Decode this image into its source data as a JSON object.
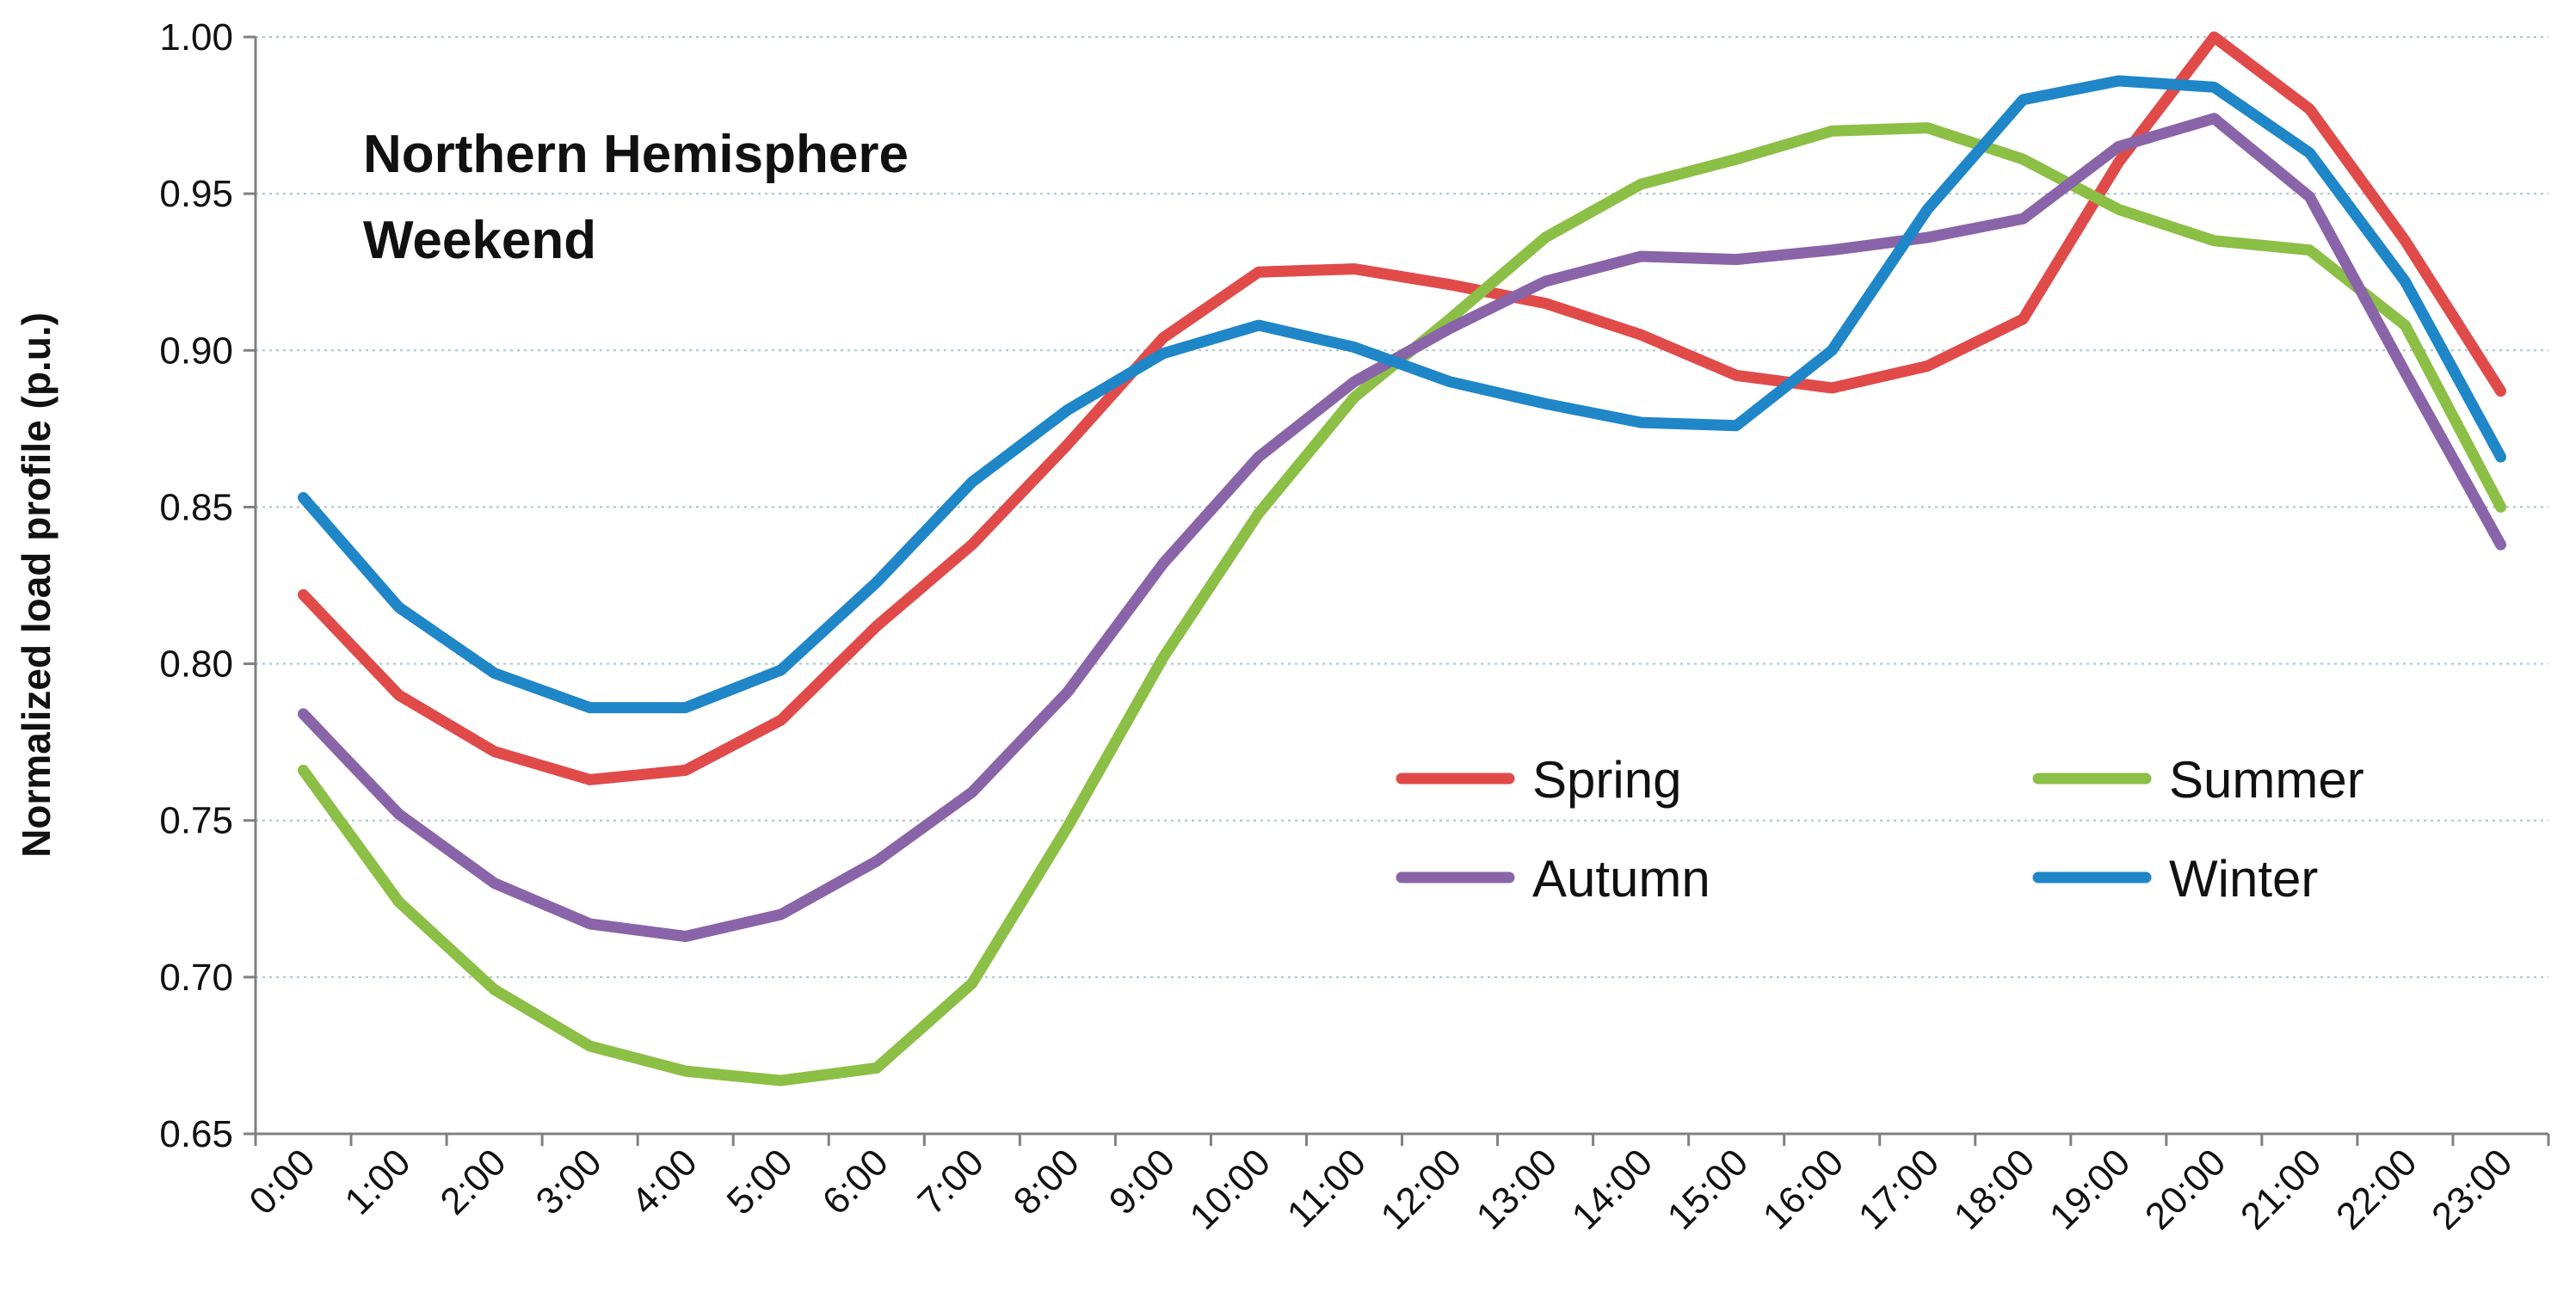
{
  "chart_data": {
    "type": "line",
    "title_lines": [
      "Northern Hemisphere",
      "Weekend"
    ],
    "xlabel": "",
    "ylabel": "Normalized load profile (p.u.)",
    "ylim": [
      0.65,
      1.0
    ],
    "yticks": [
      "0.65",
      "0.70",
      "0.75",
      "0.80",
      "0.85",
      "0.90",
      "0.95",
      "1.00"
    ],
    "grid": "horizontal-dotted",
    "legend_position": "lower-right",
    "categories": [
      "0:00",
      "1:00",
      "2:00",
      "3:00",
      "4:00",
      "5:00",
      "6:00",
      "7:00",
      "8:00",
      "9:00",
      "10:00",
      "11:00",
      "12:00",
      "13:00",
      "14:00",
      "15:00",
      "16:00",
      "17:00",
      "18:00",
      "19:00",
      "20:00",
      "21:00",
      "22:00",
      "23:00"
    ],
    "series": [
      {
        "name": "Spring",
        "color": "#e04b4a",
        "values": [
          0.822,
          0.79,
          0.772,
          0.763,
          0.766,
          0.782,
          0.812,
          0.838,
          0.87,
          0.904,
          0.925,
          0.926,
          0.921,
          0.915,
          0.905,
          0.892,
          0.888,
          0.895,
          0.91,
          0.96,
          1.0,
          0.977,
          0.935,
          0.887
        ]
      },
      {
        "name": "Summer",
        "color": "#8cbf45",
        "values": [
          0.766,
          0.724,
          0.696,
          0.678,
          0.67,
          0.667,
          0.671,
          0.698,
          0.748,
          0.802,
          0.848,
          0.885,
          0.91,
          0.936,
          0.953,
          0.961,
          0.97,
          0.971,
          0.961,
          0.945,
          0.935,
          0.932,
          0.908,
          0.85
        ]
      },
      {
        "name": "Autumn",
        "color": "#8a64a8",
        "values": [
          0.784,
          0.752,
          0.73,
          0.717,
          0.713,
          0.72,
          0.737,
          0.759,
          0.791,
          0.832,
          0.866,
          0.89,
          0.907,
          0.922,
          0.93,
          0.929,
          0.932,
          0.936,
          0.942,
          0.965,
          0.974,
          0.949,
          0.893,
          0.838
        ]
      },
      {
        "name": "Winter",
        "color": "#1f86c8",
        "values": [
          0.853,
          0.818,
          0.797,
          0.786,
          0.786,
          0.798,
          0.826,
          0.858,
          0.881,
          0.899,
          0.908,
          0.901,
          0.89,
          0.883,
          0.877,
          0.876,
          0.9,
          0.945,
          0.98,
          0.986,
          0.984,
          0.963,
          0.922,
          0.866
        ]
      }
    ]
  }
}
